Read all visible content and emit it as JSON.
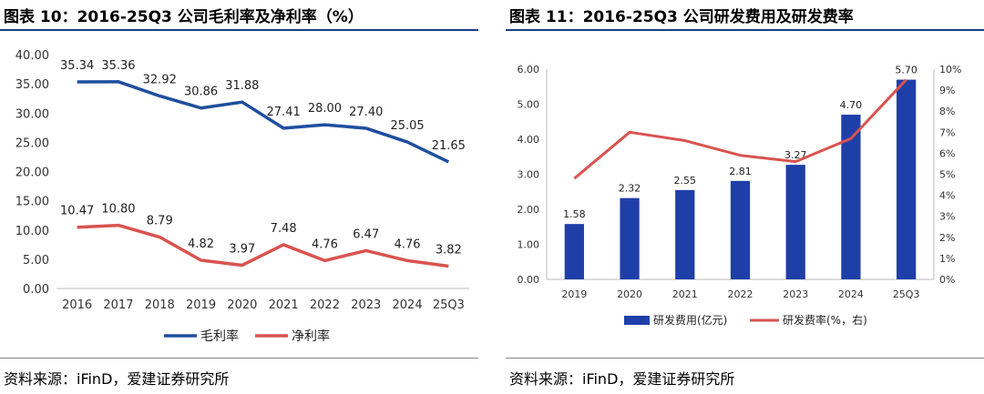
{
  "chart_data": [
    {
      "type": "line",
      "title": "图表 10：2016-25Q3 公司毛利率及净利率（%）",
      "x": [
        "2016",
        "2017",
        "2018",
        "2019",
        "2020",
        "2021",
        "2022",
        "2023",
        "2024",
        "25Q3"
      ],
      "series": [
        {
          "name": "毛利率",
          "color": "#1f4e9e",
          "values": [
            35.34,
            35.36,
            32.92,
            30.86,
            31.88,
            27.41,
            28.0,
            27.4,
            25.05,
            21.65
          ],
          "labels": [
            "35.34",
            "35.36",
            "32.92",
            "30.86",
            "31.88",
            "27.41",
            "28.00",
            "27.40",
            "25.05",
            "21.65"
          ]
        },
        {
          "name": "净利率",
          "color": "#d9534f",
          "values": [
            10.47,
            10.8,
            8.79,
            4.82,
            3.97,
            7.48,
            4.76,
            6.47,
            4.76,
            3.82
          ],
          "labels": [
            "10.47",
            "10.80",
            "8.79",
            "4.82",
            "3.97",
            "7.48",
            "4.76",
            "6.47",
            "4.76",
            "3.82"
          ]
        }
      ],
      "ylim": [
        0,
        40
      ],
      "yticks": [
        "0.00",
        "5.00",
        "10.00",
        "15.00",
        "20.00",
        "25.00",
        "30.00",
        "35.00",
        "40.00"
      ],
      "legend_position": "bottom",
      "source": "资料来源：iFinD，爱建证券研究所"
    },
    {
      "type": "bar",
      "title": "图表 11：2016-25Q3 公司研发费用及研发费率",
      "categories": [
        "2019",
        "2020",
        "2021",
        "2022",
        "2023",
        "2024",
        "25Q3"
      ],
      "series": [
        {
          "name": "研发费用(亿元)",
          "kind": "bar",
          "color": "#1f3fa8",
          "axis": "left",
          "values": [
            1.58,
            2.32,
            2.55,
            2.81,
            3.27,
            4.7,
            5.7
          ],
          "labels": [
            "1.58",
            "2.32",
            "2.55",
            "2.81",
            "3.27",
            "4.70",
            "5.70"
          ]
        },
        {
          "name": "研发费率(%，右)",
          "kind": "line",
          "color": "#d9534f",
          "axis": "right",
          "values": [
            4.8,
            7.0,
            6.6,
            5.9,
            5.6,
            6.7,
            9.5
          ]
        }
      ],
      "ylim": [
        0,
        6
      ],
      "yticks": [
        "0.00",
        "1.00",
        "2.00",
        "3.00",
        "4.00",
        "5.00",
        "6.00"
      ],
      "y2lim": [
        0,
        10
      ],
      "y2ticks": [
        "0%",
        "1%",
        "2%",
        "3%",
        "4%",
        "5%",
        "6%",
        "7%",
        "8%",
        "9%",
        "10%"
      ],
      "legend_position": "bottom",
      "source": "资料来源：iFinD，爱建证券研究所"
    }
  ]
}
